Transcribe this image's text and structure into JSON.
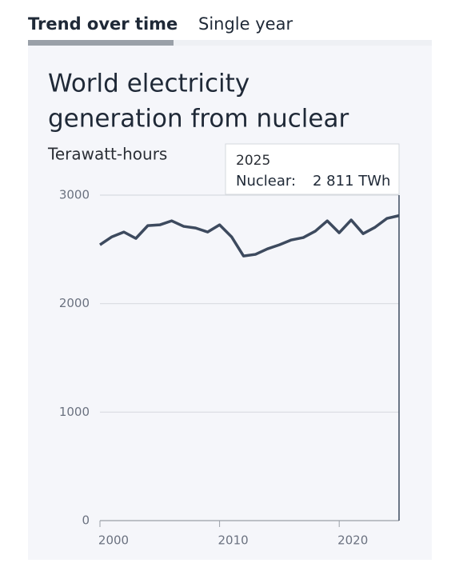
{
  "tabs": [
    "Trend over time",
    "Single year"
  ],
  "chart_data": {
    "type": "line",
    "title": [
      "World electricity",
      "generation from nuclear"
    ],
    "subtitle": "Terawatt-hours",
    "x": [
      2000,
      2001,
      2002,
      2003,
      2004,
      2005,
      2006,
      2007,
      2008,
      2009,
      2010,
      2011,
      2012,
      2013,
      2014,
      2015,
      2016,
      2017,
      2018,
      2019,
      2020,
      2021,
      2022,
      2023,
      2024,
      2025
    ],
    "series": [
      {
        "name": "Nuclear",
        "color": "#3d4a5e",
        "values": [
          2542,
          2616,
          2660,
          2601,
          2719,
          2726,
          2763,
          2712,
          2697,
          2660,
          2726,
          2616,
          2439,
          2454,
          2505,
          2542,
          2587,
          2609,
          2668,
          2763,
          2653,
          2771,
          2645,
          2704,
          2786,
          2811
        ]
      }
    ],
    "xlim": [
      2000,
      2025
    ],
    "xticks": [
      2000,
      2010,
      2020
    ],
    "ylim": [
      0,
      3000
    ],
    "yticks": [
      0,
      1000,
      2000,
      3000
    ],
    "grid": true,
    "tooltip": {
      "series_label": "Nuclear:",
      "value_label": "2 811 TWh"
    }
  }
}
